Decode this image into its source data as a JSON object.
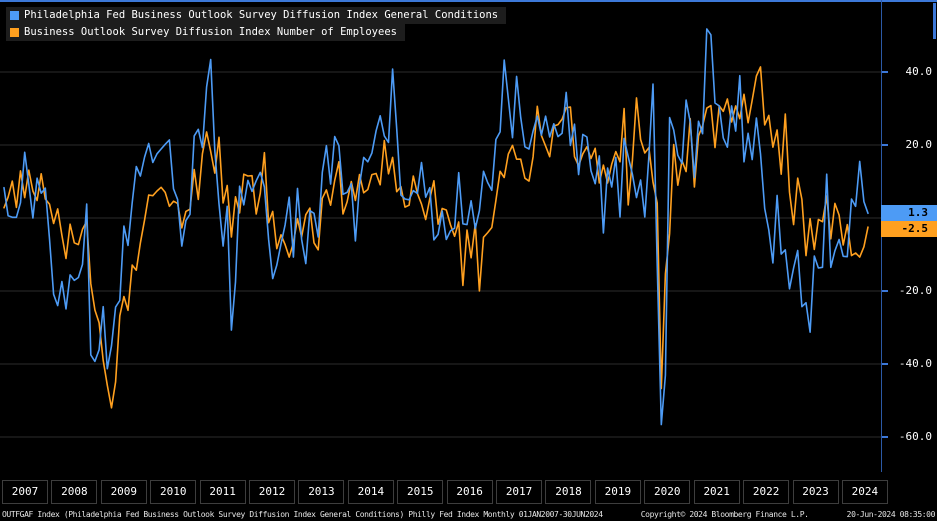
{
  "badges": {
    "series1": "1.3",
    "series2": "-2.5"
  },
  "colors": {
    "series_blue": "#4d9bf5",
    "series_orange": "#ffa01f",
    "grid": "#2d2d2d",
    "frame": "#3c78d8",
    "axis_line": "#2b59a6",
    "legend_bg": "#1d1d1d"
  },
  "x_axis": {
    "years": [
      "2007",
      "2008",
      "2009",
      "2010",
      "2011",
      "2012",
      "2013",
      "2014",
      "2015",
      "2016",
      "2017",
      "2018",
      "2019",
      "2020",
      "2021",
      "2022",
      "2023",
      "2024"
    ]
  },
  "footer": {
    "left": "OUTFGAF Index (Philadelphia Fed Business Outlook Survey Diffusion Index General Conditions) Philly Fed Index Monthly 01JAN2007-30JUN2024",
    "copyright": "Copyright© 2024 Bloomberg Finance L.P.",
    "timestamp": "20-Jun-2024 08:35:00"
  },
  "chart_data": {
    "type": "line",
    "frequency": "monthly",
    "x_start": "2007-01",
    "x_end": "2024-06",
    "ylim": [
      -69,
      57
    ],
    "grid": "horizontal",
    "legend_position": "top-left",
    "yticks": [
      {
        "v": 40,
        "label": "40.0"
      },
      {
        "v": 20,
        "label": "20.0"
      },
      {
        "v": 0,
        "label": ""
      },
      {
        "v": -20,
        "label": "-20.0"
      },
      {
        "v": -40,
        "label": "-40.0"
      },
      {
        "v": -60,
        "label": "-60.0"
      }
    ],
    "series": [
      {
        "id": "general-conditions",
        "name": "Philadelphia Fed Business Outlook Survey Diffusion Index General Conditions",
        "color": "#4d9bf5",
        "last_value": 1.3,
        "values": [
          8.3,
          0.6,
          0.2,
          0.2,
          4.2,
          18.0,
          9.2,
          0.0,
          10.9,
          6.8,
          8.2,
          -5.7,
          -20.9,
          -24.0,
          -17.4,
          -24.9,
          -15.6,
          -17.1,
          -16.3,
          -12.7,
          3.8,
          -37.5,
          -39.3,
          -36.1,
          -24.3,
          -41.3,
          -35.0,
          -24.4,
          -22.6,
          -2.2,
          -7.5,
          4.2,
          14.1,
          11.5,
          16.7,
          20.4,
          15.2,
          17.6,
          18.9,
          20.2,
          21.4,
          8.0,
          5.1,
          -7.7,
          -0.7,
          1.0,
          22.5,
          24.3,
          19.3,
          35.9,
          43.4,
          18.5,
          3.9,
          -7.7,
          3.2,
          -30.7,
          -17.5,
          8.7,
          3.6,
          10.3,
          7.3,
          10.2,
          12.5,
          8.5,
          -5.8,
          -16.6,
          -12.9,
          -7.1,
          -1.9,
          5.7,
          -10.7,
          8.1,
          -5.8,
          -12.5,
          2.0,
          1.3,
          -5.2,
          12.5,
          19.8,
          9.3,
          22.3,
          19.8,
          6.5,
          7.0,
          9.4,
          -6.3,
          9.0,
          16.6,
          15.4,
          17.8,
          23.9,
          28.0,
          22.5,
          20.7,
          40.8,
          24.5,
          6.3,
          5.2,
          5.0,
          7.5,
          6.7,
          15.2,
          5.7,
          8.3,
          -6.0,
          -4.5,
          1.9,
          -5.9,
          -3.5,
          -2.8,
          12.4,
          -1.6,
          -1.8,
          4.7,
          -2.9,
          2.0,
          12.8,
          9.7,
          7.6,
          21.5,
          23.6,
          43.3,
          32.8,
          22.0,
          38.8,
          27.6,
          19.5,
          18.9,
          23.8,
          27.9,
          22.7,
          27.9,
          22.2,
          25.8,
          22.3,
          23.2,
          34.4,
          19.9,
          25.7,
          11.9,
          22.9,
          22.2,
          12.9,
          9.4,
          17.0,
          -4.1,
          13.7,
          8.5,
          16.6,
          0.3,
          21.8,
          16.8,
          12.0,
          5.6,
          10.4,
          0.3,
          17.0,
          36.7,
          -12.7,
          -56.6,
          -43.1,
          27.5,
          24.1,
          17.2,
          15.0,
          32.3,
          26.3,
          11.1,
          26.5,
          23.1,
          51.8,
          50.2,
          31.5,
          30.7,
          21.9,
          19.4,
          30.7,
          23.8,
          39.0,
          15.4,
          23.2,
          16.0,
          27.4,
          17.6,
          2.6,
          -3.3,
          -12.3,
          6.2,
          -9.9,
          -8.7,
          -19.4,
          -13.7,
          -8.9,
          -24.3,
          -23.2,
          -31.3,
          -10.4,
          -13.7,
          -13.5,
          12.0,
          -13.5,
          -9.0,
          -5.9,
          -10.5,
          -10.6,
          5.2,
          3.2,
          15.5,
          4.5,
          1.3
        ]
      },
      {
        "id": "employees",
        "name": "Business Outlook Survey Diffusion Index Number of Employees",
        "color": "#ffa01f",
        "last_value": -2.5,
        "values": [
          2.8,
          5.7,
          10.1,
          2.9,
          12.9,
          5.6,
          13.1,
          7.4,
          4.8,
          12.1,
          5.2,
          3.8,
          -1.5,
          2.5,
          -4.7,
          -11.1,
          -1.7,
          -6.8,
          -7.3,
          -3.1,
          -0.9,
          -18.0,
          -25.2,
          -28.7,
          -39.0,
          -45.8,
          -52.0,
          -44.9,
          -26.8,
          -21.5,
          -25.3,
          -12.9,
          -14.3,
          -6.8,
          -0.5,
          6.3,
          6.1,
          7.4,
          8.4,
          7.0,
          3.2,
          4.6,
          4.0,
          -2.7,
          1.8,
          2.4,
          13.3,
          5.1,
          17.6,
          23.6,
          18.2,
          12.3,
          22.1,
          4.1,
          8.9,
          -5.2,
          5.8,
          1.4,
          12.0,
          11.5,
          11.6,
          1.1,
          6.8,
          17.9,
          -1.3,
          1.8,
          -8.4,
          -4.6,
          -7.3,
          -10.7,
          -6.8,
          -0.2,
          -5.2,
          0.9,
          2.7,
          -6.8,
          -8.7,
          5.4,
          7.7,
          3.5,
          10.3,
          15.4,
          1.1,
          4.4,
          10.0,
          4.8,
          11.9,
          6.9,
          7.8,
          11.9,
          12.2,
          9.1,
          21.2,
          12.1,
          16.6,
          7.2,
          8.6,
          3.0,
          3.5,
          11.5,
          6.7,
          3.8,
          -0.4,
          5.3,
          10.2,
          -1.7,
          2.6,
          2.2,
          -1.9,
          -5.0,
          -1.1,
          -18.5,
          -3.3,
          -10.9,
          -1.6,
          -20.0,
          -5.3,
          -4.0,
          -2.6,
          4.8,
          12.8,
          11.1,
          17.5,
          19.9,
          16.1,
          16.1,
          10.9,
          10.1,
          16.8,
          30.6,
          22.6,
          19.7,
          16.8,
          25.2,
          25.6,
          27.1,
          30.2,
          30.4,
          16.8,
          14.3,
          17.6,
          19.5,
          16.3,
          19.1,
          9.6,
          14.5,
          9.6,
          14.7,
          18.2,
          15.4,
          30.0,
          3.6,
          15.8,
          32.9,
          21.5,
          17.8,
          19.3,
          9.8,
          4.1,
          -46.7,
          -15.3,
          -4.3,
          20.1,
          9.0,
          15.7,
          12.7,
          27.2,
          8.5,
          22.5,
          25.3,
          30.1,
          30.8,
          19.3,
          30.7,
          29.2,
          32.6,
          26.3,
          30.7,
          27.2,
          33.9,
          26.1,
          32.3,
          38.9,
          41.4,
          25.5,
          28.1,
          19.4,
          24.1,
          12.0,
          28.5,
          7.1,
          -1.8,
          10.9,
          5.1,
          -10.3,
          -0.2,
          -8.6,
          -0.4,
          -1.0,
          6.0,
          -5.7,
          4.0,
          0.8,
          -7.4,
          -1.8,
          -10.3,
          -9.6,
          -10.7,
          -7.9,
          -2.5
        ]
      }
    ]
  }
}
